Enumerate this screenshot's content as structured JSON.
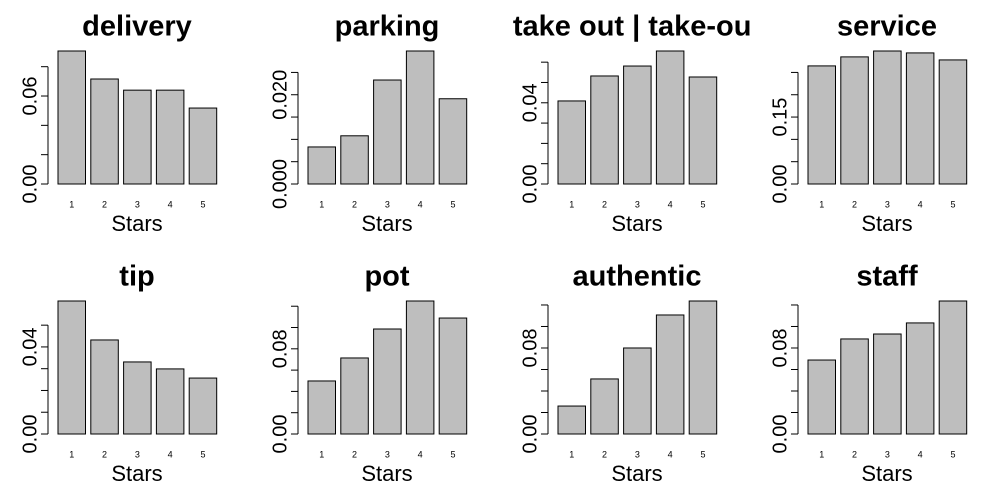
{
  "chart_data": [
    {
      "type": "bar",
      "title": "delivery",
      "x_label": "Stars",
      "categories": [
        "1",
        "2",
        "3",
        "4",
        "5"
      ],
      "values": [
        0.0907,
        0.0716,
        0.064,
        0.064,
        0.0518
      ],
      "color": "#bebebe",
      "ylim": [
        0,
        0.0907
      ],
      "yticks": [
        {
          "value": 0,
          "label": "0.00"
        },
        {
          "value": 0.06,
          "label": "0.06"
        }
      ],
      "ytick_marks": [
        0,
        0.02,
        0.04,
        0.06,
        0.08
      ]
    },
    {
      "type": "bar",
      "title": "parking",
      "x_label": "Stars",
      "categories": [
        "1",
        "2",
        "3",
        "4",
        "5"
      ],
      "values": [
        0.0083,
        0.0108,
        0.0233,
        0.0298,
        0.0191
      ],
      "color": "#bebebe",
      "ylim": [
        0,
        0.0298
      ],
      "yticks": [
        {
          "value": 0,
          "label": "0.000"
        },
        {
          "value": 0.02,
          "label": "0.020"
        }
      ],
      "ytick_marks": [
        0,
        0.005,
        0.01,
        0.015,
        0.02,
        0.025
      ]
    },
    {
      "type": "bar",
      "title": "take out | take-out",
      "x_label": "Stars",
      "categories": [
        "1",
        "2",
        "3",
        "4",
        "5"
      ],
      "values": [
        0.0409,
        0.0532,
        0.0581,
        0.0655,
        0.0527
      ],
      "color": "#bebebe",
      "ylim": [
        0,
        0.0655
      ],
      "yticks": [
        {
          "value": 0,
          "label": "0.00"
        },
        {
          "value": 0.04,
          "label": "0.04"
        }
      ],
      "ytick_marks": [
        0,
        0.01,
        0.02,
        0.03,
        0.04,
        0.05,
        0.06
      ]
    },
    {
      "type": "bar",
      "title": "service",
      "x_label": "Stars",
      "categories": [
        "1",
        "2",
        "3",
        "4",
        "5"
      ],
      "values": [
        0.2646,
        0.2848,
        0.298,
        0.2937,
        0.278
      ],
      "color": "#bebebe",
      "ylim": [
        0,
        0.298
      ],
      "yticks": [
        {
          "value": 0,
          "label": "0.00"
        },
        {
          "value": 0.15,
          "label": "0.15"
        }
      ],
      "ytick_marks": [
        0,
        0.05,
        0.1,
        0.15,
        0.2,
        0.25
      ]
    },
    {
      "type": "bar",
      "title": "tip",
      "x_label": "Stars",
      "categories": [
        "1",
        "2",
        "3",
        "4",
        "5"
      ],
      "values": [
        0.0611,
        0.0432,
        0.0331,
        0.0299,
        0.0257
      ],
      "color": "#bebebe",
      "ylim": [
        0,
        0.0611
      ],
      "yticks": [
        {
          "value": 0,
          "label": "0.00"
        },
        {
          "value": 0.04,
          "label": "0.04"
        }
      ],
      "ytick_marks": [
        0,
        0.01,
        0.02,
        0.03,
        0.04,
        0.05
      ]
    },
    {
      "type": "bar",
      "title": "pot",
      "x_label": "Stars",
      "categories": [
        "1",
        "2",
        "3",
        "4",
        "5"
      ],
      "values": [
        0.0498,
        0.0714,
        0.0986,
        0.1249,
        0.1089
      ],
      "color": "#bebebe",
      "ylim": [
        0,
        0.1249
      ],
      "yticks": [
        {
          "value": 0,
          "label": "0.00"
        },
        {
          "value": 0.08,
          "label": "0.08"
        }
      ],
      "ytick_marks": [
        0,
        0.02,
        0.04,
        0.06,
        0.08,
        0.1,
        0.12
      ]
    },
    {
      "type": "bar",
      "title": "authentic",
      "x_label": "Stars",
      "categories": [
        "1",
        "2",
        "3",
        "4",
        "5"
      ],
      "values": [
        0.026,
        0.0512,
        0.08,
        0.1107,
        0.1237
      ],
      "color": "#bebebe",
      "ylim": [
        0,
        0.1237
      ],
      "yticks": [
        {
          "value": 0,
          "label": "0.00"
        },
        {
          "value": 0.08,
          "label": "0.08"
        }
      ],
      "ytick_marks": [
        0,
        0.02,
        0.04,
        0.06,
        0.08,
        0.1,
        0.12
      ]
    },
    {
      "type": "bar",
      "title": "staff",
      "x_label": "Stars",
      "categories": [
        "1",
        "2",
        "3",
        "4",
        "5"
      ],
      "values": [
        0.0688,
        0.0884,
        0.093,
        0.1033,
        0.1237
      ],
      "color": "#bebebe",
      "ylim": [
        0,
        0.1237
      ],
      "yticks": [
        {
          "value": 0,
          "label": "0.00"
        },
        {
          "value": 0.08,
          "label": "0.08"
        }
      ],
      "ytick_marks": [
        0,
        0.02,
        0.04,
        0.06,
        0.08,
        0.1,
        0.12
      ]
    }
  ]
}
